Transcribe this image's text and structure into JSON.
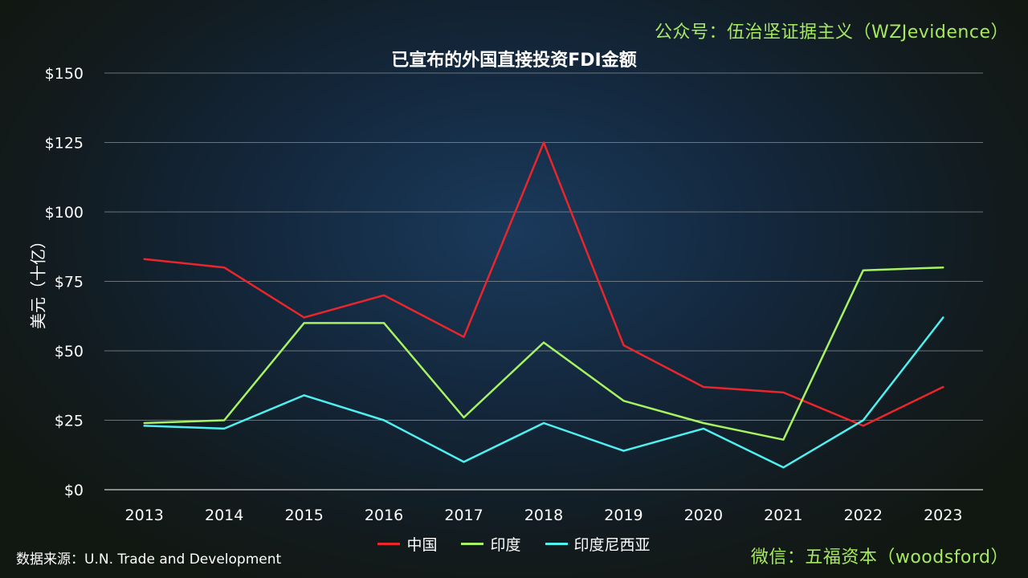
{
  "watermark_top": "公众号：伍治坚证据主义（WZJevidence）",
  "watermark_bottom": "微信：五福资本（woodsford）",
  "source": "数据来源：U.N. Trade and Development",
  "chart_data": {
    "type": "line",
    "title": "已宣布的外国直接投资FDI金额",
    "xlabel": "",
    "ylabel": "美元（十亿）",
    "x": [
      "2013",
      "2014",
      "2015",
      "2016",
      "2017",
      "2018",
      "2019",
      "2020",
      "2021",
      "2022",
      "2023"
    ],
    "ylim": [
      0,
      150
    ],
    "yticks": [
      0,
      25,
      50,
      75,
      100,
      125,
      150
    ],
    "ytick_labels": [
      "$0",
      "$25",
      "$50",
      "$75",
      "$100",
      "$125",
      "$150"
    ],
    "grid": "horizontal",
    "legend_position": "bottom",
    "series": [
      {
        "name": "中国",
        "color": "#e8262b",
        "values": [
          83,
          80,
          62,
          70,
          55,
          125,
          52,
          37,
          35,
          23,
          37
        ]
      },
      {
        "name": "印度",
        "color": "#a6f263",
        "values": [
          24,
          25,
          60,
          60,
          26,
          53,
          32,
          24,
          18,
          79,
          80
        ]
      },
      {
        "name": "印度尼西亚",
        "color": "#4ef0f0",
        "values": [
          23,
          22,
          34,
          25,
          10,
          24,
          14,
          22,
          8,
          25,
          62
        ]
      }
    ]
  }
}
